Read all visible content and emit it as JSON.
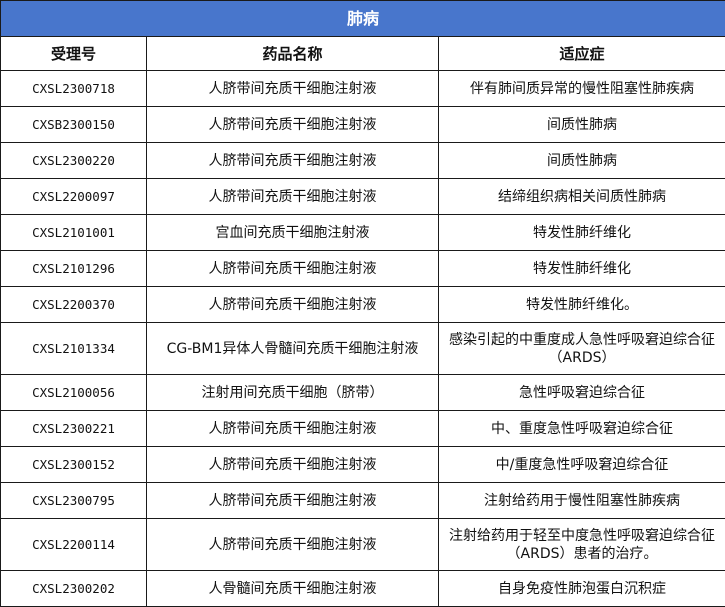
{
  "title": "肺病",
  "headers": [
    "受理号",
    "药品名称",
    "适应症"
  ],
  "rows": [
    [
      "CXSL2300718",
      "人脐带间充质干细胞注射液",
      "伴有肺间质异常的慢性阻塞性肺疾病"
    ],
    [
      "CXSB2300150",
      "人脐带间充质干细胞注射液",
      "间质性肺病"
    ],
    [
      "CXSL2300220",
      "人脐带间充质干细胞注射液",
      "间质性肺病"
    ],
    [
      "CXSL2200097",
      "人脐带间充质干细胞注射液",
      "结缔组织病相关间质性肺病"
    ],
    [
      "CXSL2101001",
      "宫血间充质干细胞注射液",
      "特发性肺纤维化"
    ],
    [
      "CXSL2101296",
      "人脐带间充质干细胞注射液",
      "特发性肺纤维化"
    ],
    [
      "CXSL2200370",
      "人脐带间充质干细胞注射液",
      "特发性肺纤维化。"
    ],
    [
      "CXSL2101334",
      "CG-BM1异体人骨髓间充质干细胞注射液",
      "感染引起的中重度成人急性呼吸窘迫综合征（ARDS）"
    ],
    [
      "CXSL2100056",
      "注射用间充质干细胞（脐带）",
      "急性呼吸窘迫综合征"
    ],
    [
      "CXSL2300221",
      "人脐带间充质干细胞注射液",
      "中、重度急性呼吸窘迫综合征"
    ],
    [
      "CXSL2300152",
      "人脐带间充质干细胞注射液",
      "中/重度急性呼吸窘迫综合征"
    ],
    [
      "CXSL2300795",
      "人脐带间充质干细胞注射液",
      "注射给药用于慢性阻塞性肺疾病"
    ],
    [
      "CXSL2200114",
      "人脐带间充质干细胞注射液",
      "注射给药用于轻至中度急性呼吸窘迫综合征（ARDS）患者的治疗。"
    ],
    [
      "CXSL2300202",
      "人骨髓间充质干细胞注射液",
      "自身免疫性肺泡蛋白沉积症"
    ]
  ]
}
